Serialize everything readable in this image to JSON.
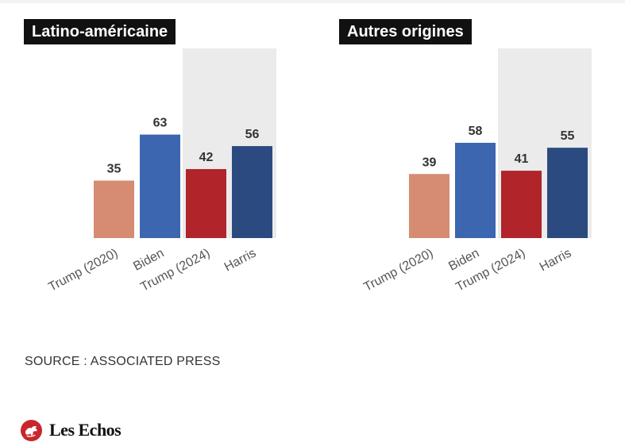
{
  "chart_data": [
    {
      "type": "bar",
      "title": "Latino-américaine",
      "categories": [
        "Trump (2020)",
        "Biden",
        "Trump (2024)",
        "Harris"
      ],
      "values": [
        35,
        63,
        42,
        56
      ],
      "colors": [
        "#d58c73",
        "#3c66af",
        "#b0242a",
        "#2b4a80"
      ],
      "highlight_categories": [
        "Trump (2024)",
        "Harris"
      ],
      "ylim": [
        0,
        80
      ],
      "xlabel": "",
      "ylabel": ""
    },
    {
      "type": "bar",
      "title": "Autres origines",
      "categories": [
        "Trump (2020)",
        "Biden",
        "Trump (2024)",
        "Harris"
      ],
      "values": [
        39,
        58,
        41,
        55
      ],
      "colors": [
        "#d58c73",
        "#3c66af",
        "#b0242a",
        "#2b4a80"
      ],
      "highlight_categories": [
        "Trump (2024)",
        "Harris"
      ],
      "ylim": [
        0,
        80
      ],
      "xlabel": "",
      "ylabel": ""
    }
  ],
  "highlight_color": "#ebebeb",
  "source": "SOURCE : ASSOCIATED PRESS",
  "logo": {
    "icon": "les-echos-rooster-icon",
    "text": "Les Echos",
    "color": "#c8262d"
  }
}
